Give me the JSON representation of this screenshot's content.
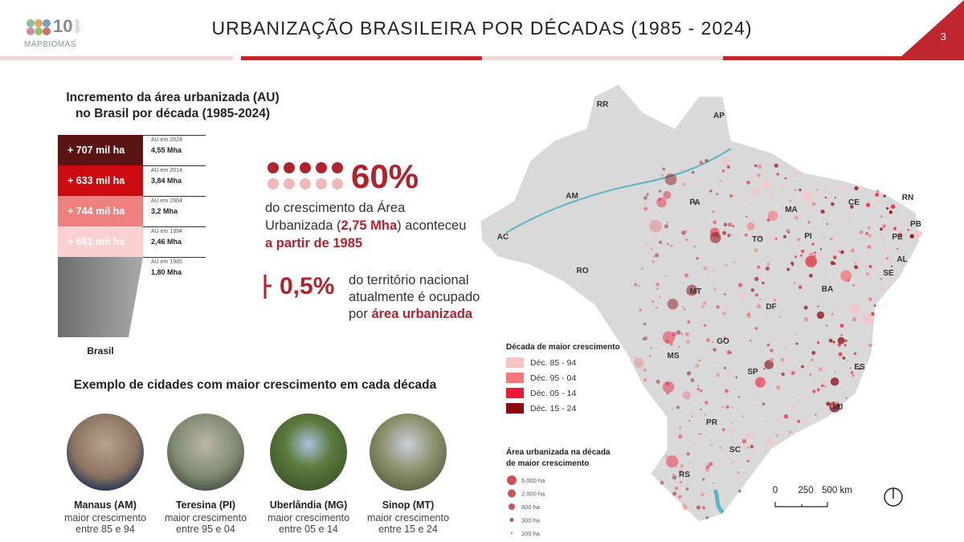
{
  "header": {
    "logo_badge": "10",
    "logo_sub": "ANOS",
    "logo_text": "MAPBIOMAS",
    "title": "URBANIZAÇÃO BRASILEIRA POR DÉCADAS (1985 - 2024)",
    "page": "3"
  },
  "increment": {
    "title_lines": [
      "Incremento da área urbanizada (AU)",
      "no Brasil por década (1985-2024)"
    ],
    "rows": [
      {
        "increment": "+ 707 mil ha",
        "label": "AU em 2024",
        "value": "4,55 Mha"
      },
      {
        "increment": "+ 633 mil ha",
        "label": "AU em 2014",
        "value": "3,84 Mha"
      },
      {
        "increment": "+ 744 mil ha",
        "label": "AU em 2004",
        "value": "3,2 Mha"
      },
      {
        "increment": "+ 661 mil ha",
        "label": "AU em 1994",
        "value": "2,46 Mha"
      },
      {
        "label": "AU em 1985",
        "value": "1,80 Mha"
      }
    ],
    "caption": "Brasil"
  },
  "growth": {
    "pct": "60%",
    "text_a": "do crescimento da Área Urbanizada (",
    "highlight_a": "2,75 Mha",
    "text_b": ") aconteceu ",
    "highlight_b": "a partir de 1985"
  },
  "share": {
    "pct": "0,5%",
    "text_lines": [
      "do território nacional",
      "atualmente é ocupado",
      "por "
    ],
    "highlight": "área urbanizada"
  },
  "cities": {
    "title": "Exemplo de cidades com maior crescimento em cada década",
    "items": [
      {
        "name": "Manaus (AM)",
        "desc": "maior crescimento",
        "period": "entre 85 e 94"
      },
      {
        "name": "Teresina (PI)",
        "desc": "maior crescimento",
        "period": "entre 95 e 04"
      },
      {
        "name": "Uberlândia (MG)",
        "desc": "maior crescimento",
        "period": "entre 05 e 14"
      },
      {
        "name": "Sinop (MT)",
        "desc": "maior crescimento",
        "period": "entre 15 e 24"
      }
    ]
  },
  "map": {
    "states": [
      "RR",
      "AP",
      "AM",
      "PA",
      "MA",
      "CE",
      "RN",
      "PB",
      "PE",
      "AL",
      "SE",
      "PI",
      "TO",
      "BA",
      "AC",
      "RO",
      "MT",
      "DF",
      "GO",
      "MS",
      "SP",
      "ES",
      "RJ",
      "PR",
      "SC",
      "RS"
    ],
    "legend_decade": {
      "title": "Década de maior crescimento",
      "items": [
        {
          "label": "Déc. 85 - 94",
          "color": "#f9c3c3"
        },
        {
          "label": "Déc. 95 - 04",
          "color": "#f2787c"
        },
        {
          "label": "Déc. 05 - 14",
          "color": "#ea1c35"
        },
        {
          "label": "Déc. 15 - 24",
          "color": "#8b0a0f"
        }
      ]
    },
    "legend_area": {
      "title_lines": [
        "Área urbanizada na década",
        "de maior crescimento"
      ],
      "items": [
        "5.000 ha",
        "2.000 ha",
        "800 ha",
        "300 ha",
        "100 ha"
      ]
    },
    "scale": [
      "0",
      "250",
      "500 km"
    ]
  }
}
